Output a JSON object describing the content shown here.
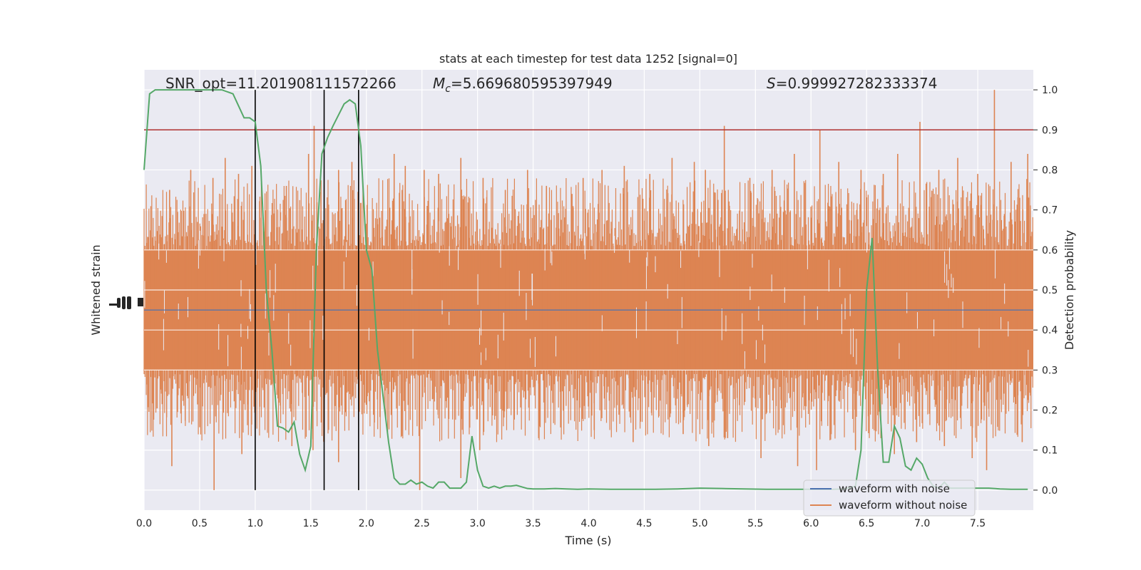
{
  "chart_data": {
    "type": "line",
    "title": "stats at each timestep for test data 1252 [signal=0]",
    "annotations": {
      "snr": "SNR_opt=11.201908111572266",
      "mc_symbol": "M",
      "mc_sub": "c",
      "mc_value": "=5.669680595397949",
      "s_symbol": "S",
      "s_value": "=0.999927282333374"
    },
    "xlabel": "Time (s)",
    "ylabel_left": "Whitened strain",
    "ylabel_right": "Detection probability",
    "xlim": [
      0,
      8.0
    ],
    "ylim_right": [
      -0.05,
      1.05
    ],
    "x_ticks": [
      "0.0",
      "0.5",
      "1.0",
      "1.5",
      "2.0",
      "2.5",
      "3.0",
      "3.5",
      "4.0",
      "4.5",
      "5.0",
      "5.5",
      "6.0",
      "6.5",
      "7.0",
      "7.5"
    ],
    "y_ticks_right": [
      "0.0",
      "0.1",
      "0.2",
      "0.3",
      "0.4",
      "0.5",
      "0.6",
      "0.7",
      "0.8",
      "0.9",
      "1.0"
    ],
    "grid": true,
    "threshold": 0.9,
    "vertical_lines_x": [
      1.0,
      1.62,
      1.93
    ],
    "series": [
      {
        "name": "waveform with noise",
        "color": "#4c72b0",
        "style": "flat at zero"
      },
      {
        "name": "waveform without noise",
        "color": "#dd8452",
        "style": "dense noise"
      }
    ],
    "detection_probability": {
      "color": "#55a868",
      "x": [
        0.0,
        0.05,
        0.1,
        0.2,
        0.3,
        0.4,
        0.5,
        0.6,
        0.7,
        0.8,
        0.85,
        0.9,
        0.95,
        1.0,
        1.05,
        1.1,
        1.15,
        1.2,
        1.25,
        1.3,
        1.35,
        1.4,
        1.45,
        1.5,
        1.55,
        1.6,
        1.65,
        1.7,
        1.8,
        1.85,
        1.9,
        1.95,
        2.0,
        2.05,
        2.1,
        2.2,
        2.25,
        2.3,
        2.35,
        2.4,
        2.45,
        2.5,
        2.55,
        2.6,
        2.65,
        2.7,
        2.75,
        2.8,
        2.85,
        2.9,
        2.95,
        3.0,
        3.05,
        3.1,
        3.15,
        3.2,
        3.25,
        3.3,
        3.35,
        3.4,
        3.45,
        3.5,
        3.55,
        3.6,
        3.7,
        3.8,
        3.9,
        4.0,
        4.2,
        4.4,
        4.6,
        4.8,
        5.0,
        5.2,
        5.4,
        5.6,
        5.8,
        6.0,
        6.2,
        6.3,
        6.4,
        6.45,
        6.5,
        6.55,
        6.6,
        6.65,
        6.7,
        6.75,
        6.8,
        6.85,
        6.9,
        6.95,
        7.0,
        7.05,
        7.1,
        7.15,
        7.2,
        7.25,
        7.3,
        7.35,
        7.4,
        7.5,
        7.6,
        7.7,
        7.8,
        7.95
      ],
      "y": [
        0.8,
        0.99,
        1.0,
        1.0,
        1.0,
        1.0,
        1.0,
        1.0,
        1.0,
        0.99,
        0.96,
        0.93,
        0.93,
        0.92,
        0.81,
        0.5,
        0.35,
        0.16,
        0.155,
        0.145,
        0.17,
        0.09,
        0.05,
        0.11,
        0.6,
        0.84,
        0.88,
        0.91,
        0.965,
        0.975,
        0.965,
        0.86,
        0.6,
        0.55,
        0.35,
        0.12,
        0.03,
        0.015,
        0.015,
        0.025,
        0.015,
        0.02,
        0.01,
        0.005,
        0.02,
        0.02,
        0.005,
        0.005,
        0.005,
        0.02,
        0.135,
        0.05,
        0.01,
        0.005,
        0.01,
        0.005,
        0.01,
        0.01,
        0.012,
        0.008,
        0.004,
        0.003,
        0.003,
        0.003,
        0.004,
        0.003,
        0.002,
        0.003,
        0.002,
        0.002,
        0.002,
        0.003,
        0.005,
        0.004,
        0.003,
        0.002,
        0.002,
        0.002,
        0.002,
        0.003,
        0.01,
        0.1,
        0.5,
        0.63,
        0.3,
        0.07,
        0.07,
        0.16,
        0.13,
        0.06,
        0.05,
        0.08,
        0.065,
        0.03,
        0.01,
        0.005,
        0.02,
        0.005,
        0.005,
        0.005,
        0.005,
        0.005,
        0.005,
        0.003,
        0.002,
        0.002
      ]
    },
    "noise_spikes": {
      "up_x": [
        0.23,
        0.42,
        0.62,
        0.73,
        0.85,
        0.97,
        1.28,
        1.48,
        1.53,
        1.75,
        1.87,
        2.25,
        2.35,
        2.52,
        2.65,
        2.85,
        3.05,
        3.25,
        3.45,
        3.62,
        3.85,
        3.95,
        4.12,
        4.32,
        4.55,
        4.75,
        4.95,
        5.05,
        5.22,
        5.45,
        5.65,
        5.85,
        6.08,
        6.25,
        6.45,
        6.65,
        6.78,
        6.98,
        7.15,
        7.32,
        7.5,
        7.65,
        7.8,
        7.95
      ],
      "up_y": [
        0.75,
        0.8,
        0.78,
        0.83,
        0.79,
        0.81,
        0.76,
        0.84,
        0.91,
        0.8,
        0.82,
        0.84,
        0.81,
        0.8,
        0.79,
        0.83,
        0.78,
        0.75,
        0.8,
        0.76,
        0.74,
        0.78,
        0.8,
        0.81,
        0.79,
        0.83,
        0.82,
        0.8,
        0.91,
        0.78,
        0.8,
        0.84,
        0.9,
        0.82,
        0.8,
        0.79,
        0.84,
        0.92,
        0.8,
        0.83,
        0.79,
        1.0,
        0.82,
        0.84
      ],
      "down_x": [
        0.25,
        0.63,
        0.88,
        1.33,
        1.52,
        1.62,
        1.75,
        2.48,
        2.85,
        3.02,
        3.55,
        4.05,
        4.4,
        4.85,
        5.08,
        5.25,
        5.55,
        5.88,
        6.05,
        6.4,
        6.75,
        6.95,
        7.2,
        7.45,
        7.58,
        7.9
      ],
      "down_y": [
        0.06,
        0.0,
        0.09,
        0.11,
        0.1,
        0.12,
        0.07,
        0.0,
        0.03,
        0.1,
        0.13,
        0.15,
        0.12,
        0.14,
        0.11,
        0.13,
        0.08,
        0.06,
        0.05,
        0.1,
        0.09,
        0.12,
        0.11,
        0.08,
        0.05,
        0.12
      ]
    }
  }
}
